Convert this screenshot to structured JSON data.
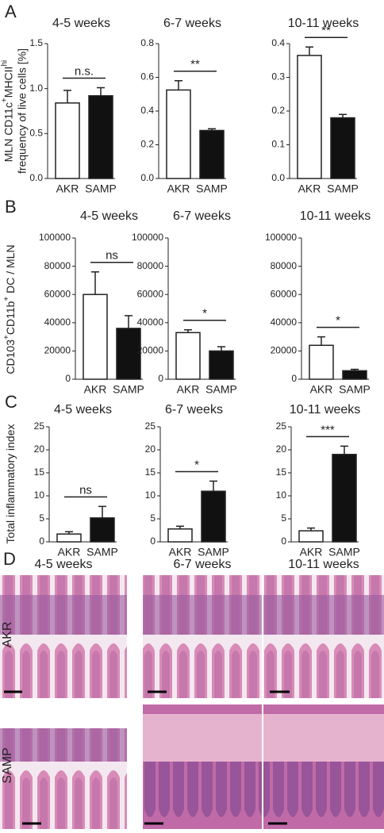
{
  "panel_labels": [
    "A",
    "B",
    "C",
    "D"
  ],
  "ylabels": [
    [
      [
        {
          "text": "MLN CD11c"
        },
        {
          "text": "+",
          "sup": true
        },
        {
          "text": "MHCII"
        },
        {
          "text": "hi",
          "sup": true
        }
      ],
      [
        {
          "text": "frequency of live cells [%]"
        }
      ]
    ],
    [
      [
        {
          "text": "CD103"
        },
        {
          "text": "+",
          "sup": true
        },
        {
          "text": "CD11b"
        },
        {
          "text": "+",
          "sup": true
        },
        {
          "text": " DC / MLN"
        }
      ]
    ],
    [
      [
        {
          "text": "Total inflammatory index"
        }
      ]
    ]
  ],
  "chart_data": [
    {
      "type": "bar",
      "title": "4-5 weeks",
      "categories": [
        "AKR",
        "SAMP"
      ],
      "values": [
        0.84,
        0.92
      ],
      "errors": [
        0.14,
        0.09
      ],
      "colors": [
        "#ffffff",
        "#111111"
      ],
      "significance": "n.s.",
      "ylim": [
        0,
        1.5
      ],
      "yticks": [
        {
          "value": 0,
          "label": "0.0"
        },
        0.5,
        {
          "value": 1,
          "label": "1.0"
        },
        1.5
      ]
    },
    {
      "type": "bar",
      "title": "6-7 weeks",
      "categories": [
        "AKR",
        "SAMP"
      ],
      "values": [
        0.525,
        0.285
      ],
      "errors": [
        0.055,
        0.01
      ],
      "colors": [
        "#ffffff",
        "#111111"
      ],
      "significance": "**",
      "ylim": [
        0,
        0.8
      ],
      "yticks": [
        {
          "value": 0,
          "label": "0.0"
        },
        0.2,
        0.4,
        0.6,
        0.8
      ]
    },
    {
      "type": "bar",
      "title": "10-11 weeks",
      "categories": [
        "AKR",
        "SAMP"
      ],
      "values": [
        0.365,
        0.18
      ],
      "errors": [
        0.025,
        0.01
      ],
      "colors": [
        "#ffffff",
        "#111111"
      ],
      "significance": "**",
      "ylim": [
        0,
        0.4
      ],
      "yticks": [
        {
          "value": 0,
          "label": "0.0"
        },
        0.1,
        0.2,
        0.3,
        0.4
      ]
    },
    {
      "type": "bar",
      "title": "4-5 weeks",
      "categories": [
        "AKR",
        "SAMP"
      ],
      "values": [
        60000,
        36000
      ],
      "errors": [
        16000,
        9000
      ],
      "colors": [
        "#ffffff",
        "#111111"
      ],
      "significance": "ns",
      "ylim": [
        0,
        100000
      ],
      "yticks": [
        0,
        20000,
        40000,
        60000,
        80000,
        100000
      ]
    },
    {
      "type": "bar",
      "title": "6-7 weeks",
      "categories": [
        "AKR",
        "SAMP"
      ],
      "values": [
        33000,
        20000
      ],
      "errors": [
        2000,
        3000
      ],
      "colors": [
        "#ffffff",
        "#111111"
      ],
      "significance": "*",
      "ylim": [
        0,
        100000
      ],
      "yticks": [
        0,
        20000,
        40000,
        60000,
        80000,
        100000
      ]
    },
    {
      "type": "bar",
      "title": "10-11 weeks",
      "categories": [
        "AKR",
        "SAMP"
      ],
      "values": [
        24000,
        6000
      ],
      "errors": [
        6000,
        1000
      ],
      "colors": [
        "#ffffff",
        "#111111"
      ],
      "significance": "*",
      "ylim": [
        0,
        100000
      ],
      "yticks": [
        0,
        20000,
        40000,
        60000,
        80000,
        100000
      ]
    },
    {
      "type": "bar",
      "title": "4-5 weeks",
      "categories": [
        "AKR",
        "SAMP"
      ],
      "values": [
        1.7,
        5.2
      ],
      "errors": [
        0.5,
        2.5
      ],
      "colors": [
        "#ffffff",
        "#111111"
      ],
      "significance": "ns",
      "ylim": [
        0,
        25
      ],
      "yticks": [
        0,
        5,
        10,
        15,
        20,
        25
      ]
    },
    {
      "type": "bar",
      "title": "6-7 weeks",
      "categories": [
        "AKR",
        "SAMP"
      ],
      "values": [
        2.8,
        11
      ],
      "errors": [
        0.6,
        2.2
      ],
      "colors": [
        "#ffffff",
        "#111111"
      ],
      "significance": "*",
      "ylim": [
        0,
        25
      ],
      "yticks": [
        0,
        5,
        10,
        15,
        20,
        25
      ]
    },
    {
      "type": "bar",
      "title": "10-11 weeks",
      "categories": [
        "AKR",
        "SAMP"
      ],
      "values": [
        2.4,
        19
      ],
      "errors": [
        0.6,
        1.8
      ],
      "colors": [
        "#ffffff",
        "#111111"
      ],
      "significance": "***",
      "ylim": [
        0,
        25
      ],
      "yticks": [
        0,
        5,
        10,
        15,
        20,
        25
      ]
    }
  ],
  "histology": {
    "columns": [
      "4-5 weeks",
      "6-7 weeks",
      "10-11 weeks"
    ],
    "rows": [
      "AKR",
      "SAMP"
    ]
  }
}
